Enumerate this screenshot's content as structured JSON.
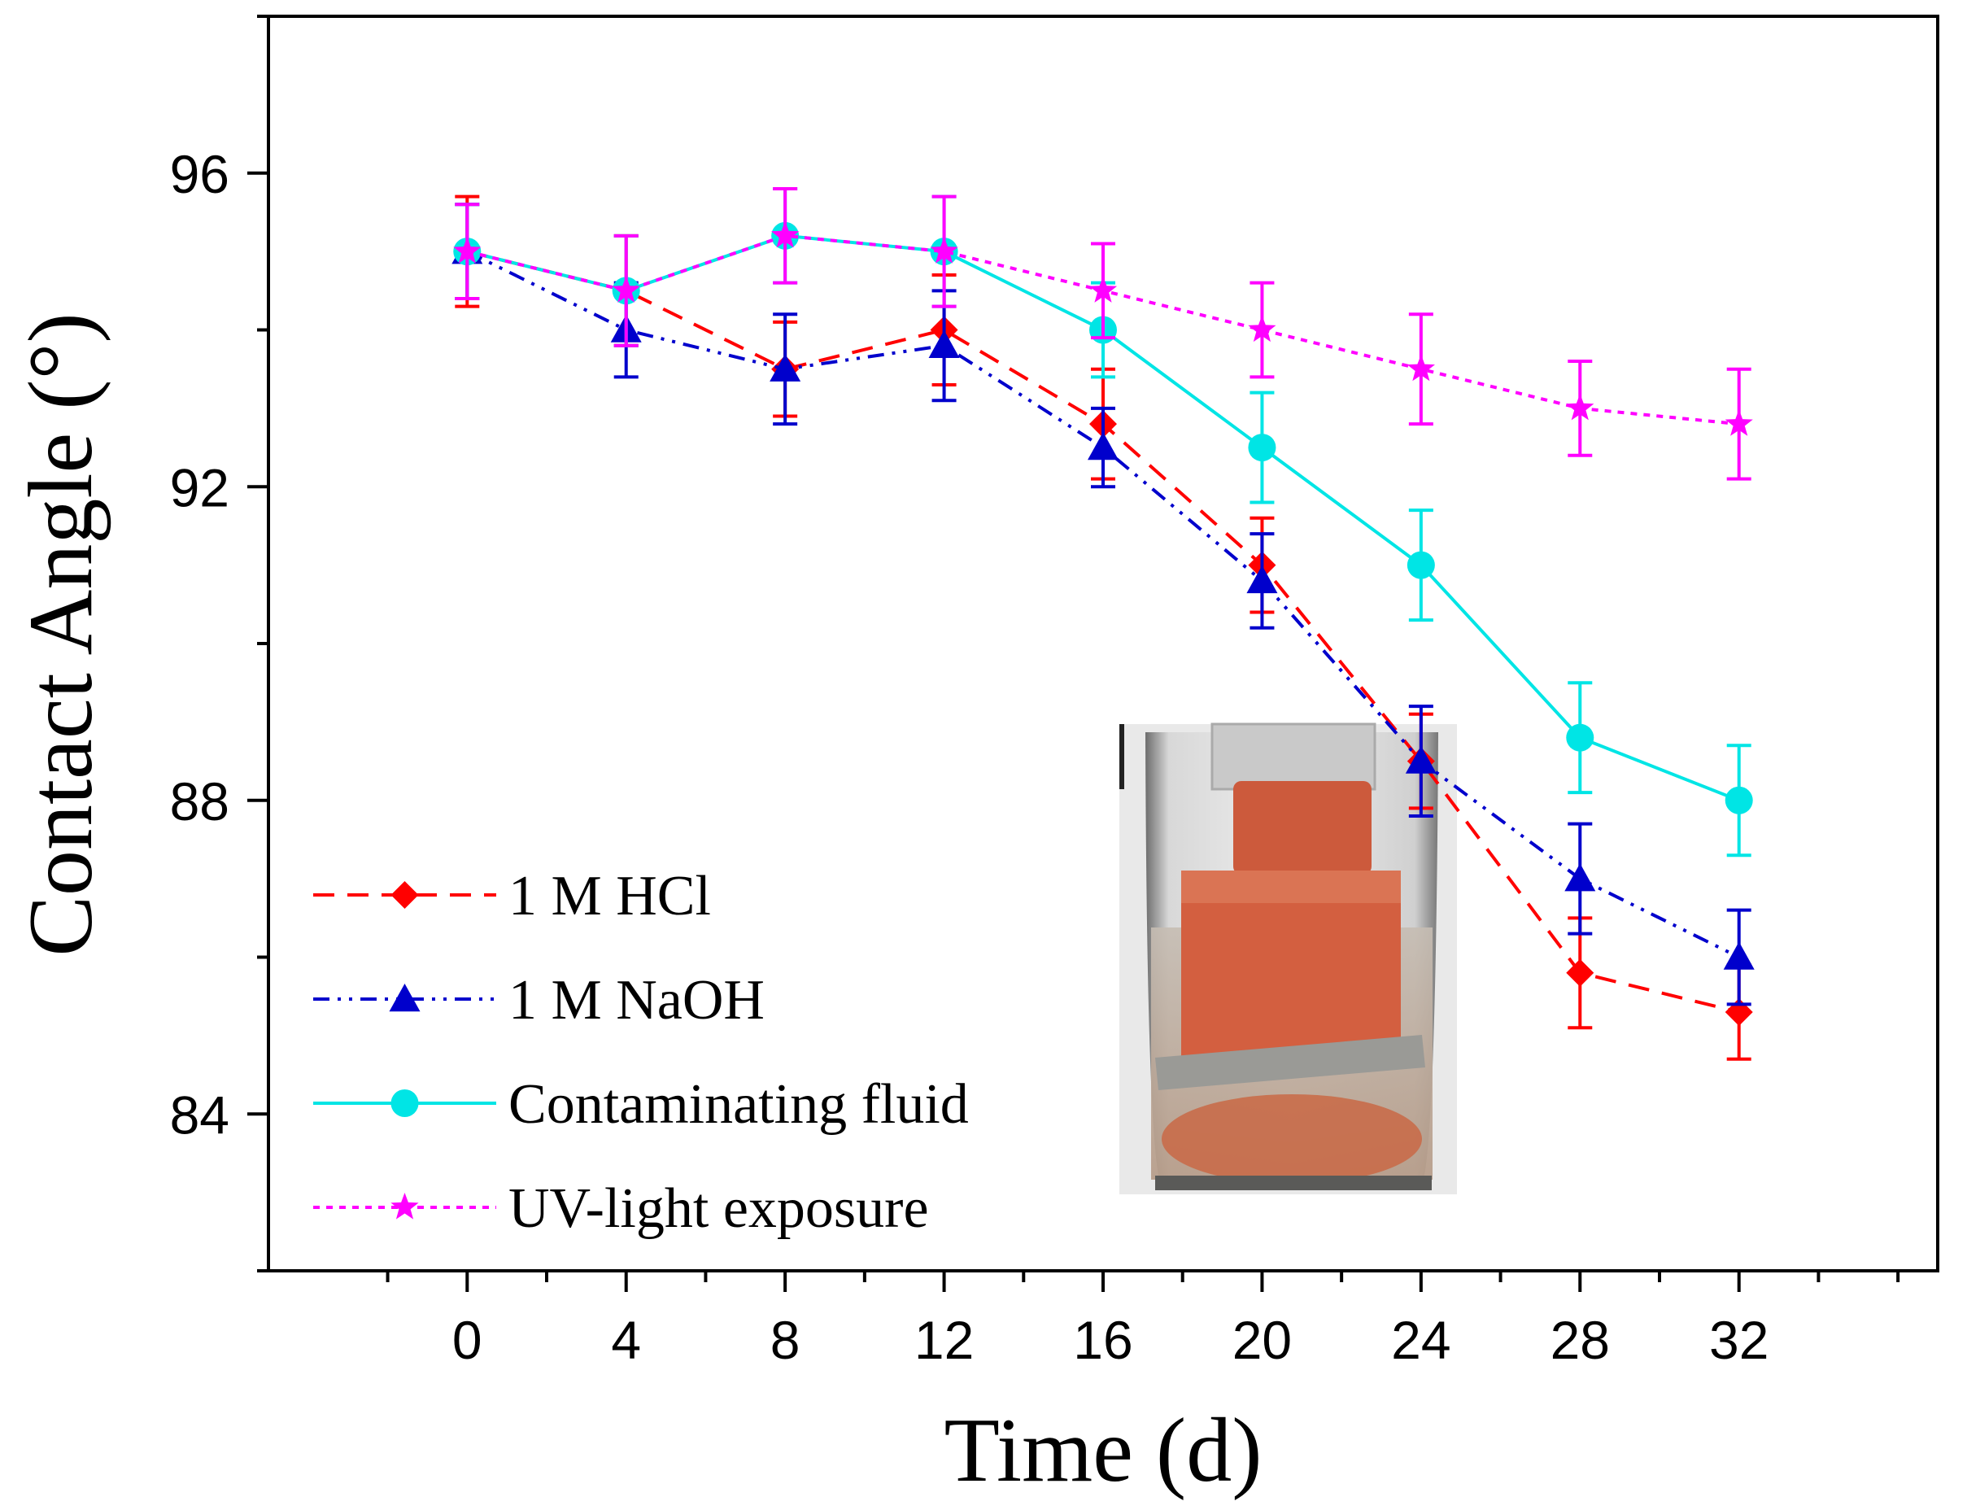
{
  "chart_data": {
    "type": "line",
    "title": "",
    "xlabel": "Time (d)",
    "ylabel": "Contact Angle (°)",
    "xlim": [
      -5,
      37
    ],
    "ylim": [
      82,
      98
    ],
    "xticks": [
      0,
      4,
      8,
      12,
      16,
      20,
      24,
      28,
      32
    ],
    "yticks": [
      84,
      88,
      92,
      96
    ],
    "x": [
      0,
      4,
      8,
      12,
      16,
      20,
      24,
      28,
      32
    ],
    "series": [
      {
        "name": "1 M HCl",
        "color": "#ff0000",
        "marker": "diamond",
        "line_style": "dashed",
        "values": [
          95.0,
          94.5,
          93.5,
          94.0,
          92.8,
          91.0,
          88.5,
          85.8,
          85.3
        ],
        "errors": [
          0.7,
          0.7,
          0.6,
          0.7,
          0.7,
          0.6,
          0.6,
          0.7,
          0.6
        ]
      },
      {
        "name": "1 M NaOH",
        "color": "#0000cc",
        "marker": "triangle",
        "line_style": "dash-dot-dot",
        "values": [
          95.0,
          94.0,
          93.5,
          93.8,
          92.5,
          90.8,
          88.5,
          87.0,
          86.0
        ],
        "errors": [
          0.6,
          0.6,
          0.7,
          0.7,
          0.5,
          0.6,
          0.7,
          0.7,
          0.6
        ]
      },
      {
        "name": "Contaminating fluid",
        "color": "#00e5e5",
        "marker": "circle",
        "line_style": "solid",
        "values": [
          95.0,
          94.5,
          95.2,
          95.0,
          94.0,
          92.5,
          91.0,
          88.8,
          88.0
        ],
        "errors": [
          0.6,
          0.7,
          0.6,
          0.7,
          0.6,
          0.7,
          0.7,
          0.7,
          0.7
        ]
      },
      {
        "name": "UV-light exposure",
        "color": "#ff00ff",
        "marker": "star",
        "line_style": "dotted",
        "values": [
          95.0,
          94.5,
          95.2,
          95.0,
          94.5,
          94.0,
          93.5,
          93.0,
          92.8
        ],
        "errors": [
          0.6,
          0.7,
          0.6,
          0.7,
          0.6,
          0.6,
          0.7,
          0.6,
          0.7
        ]
      }
    ],
    "legend_position": "bottom-left",
    "inset": "photo of a vial with a red-coated strip immersed in liquid",
    "grid": false
  }
}
